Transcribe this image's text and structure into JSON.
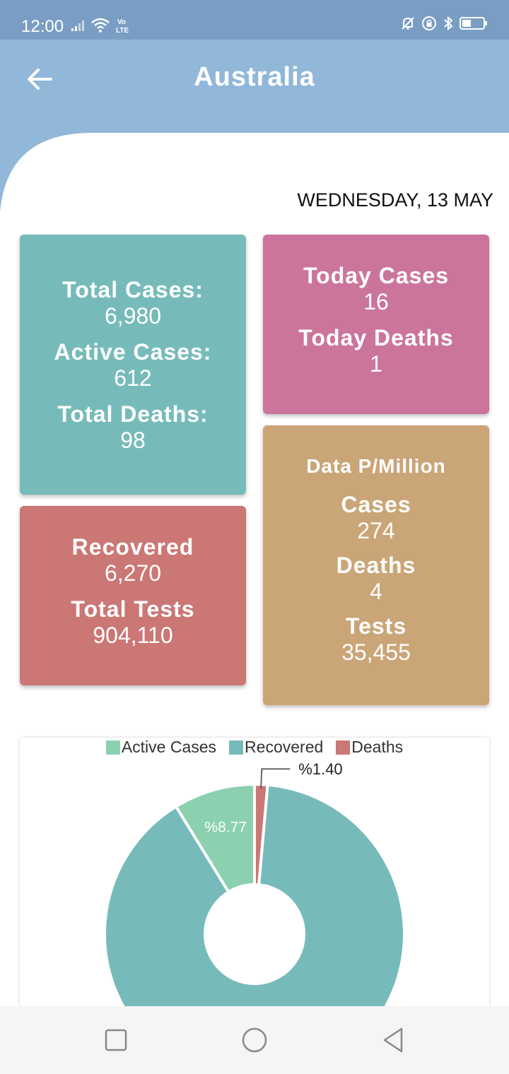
{
  "status_bar": {
    "time": "12:00",
    "network": "Vo LTE",
    "icons": [
      "signal-icon",
      "wifi-icon",
      "volte-icon",
      "bell-off-icon",
      "lock-rotation-icon",
      "bluetooth-icon",
      "battery-icon"
    ]
  },
  "app_bar": {
    "title": "Australia",
    "back_icon": "arrow-left-icon"
  },
  "date": "WEDNESDAY, 13 MAY",
  "totals": {
    "total_cases_label": "Total Cases:",
    "total_cases_value": "6,980",
    "active_cases_label": "Active Cases:",
    "active_cases_value": "612",
    "total_deaths_label": "Total Deaths:",
    "total_deaths_value": "98"
  },
  "today": {
    "cases_label": "Today Cases",
    "cases_value": "16",
    "deaths_label": "Today Deaths",
    "deaths_value": "1"
  },
  "recovery": {
    "recovered_label": "Recovered",
    "recovered_value": "6,270",
    "tests_label": "Total Tests",
    "tests_value": "904,110"
  },
  "per_million": {
    "heading": "Data P/Million",
    "cases_label": "Cases",
    "cases_value": "274",
    "deaths_label": "Deaths",
    "deaths_value": "4",
    "tests_label": "Tests",
    "tests_value": "35,455"
  },
  "colors": {
    "status_bar": "#7a9ec3",
    "app_bar": "#91b7d9",
    "teal": "#76bbba",
    "pink": "#cb759c",
    "red": "#cb7775",
    "tan": "#caa577",
    "active_green": "#8bd1af"
  },
  "chart_data": {
    "type": "pie",
    "legend_position": "top",
    "categories": [
      "Active Cases",
      "Recovered",
      "Deaths"
    ],
    "values": [
      8.77,
      89.83,
      1.4
    ],
    "data_labels": [
      "%8.77",
      "",
      "%1.40"
    ],
    "colors": [
      "#8bd1af",
      "#76bbba",
      "#cb7775"
    ]
  },
  "nav_bar": {
    "icons": [
      "recent-apps-icon",
      "home-icon",
      "back-triangle-icon"
    ]
  }
}
